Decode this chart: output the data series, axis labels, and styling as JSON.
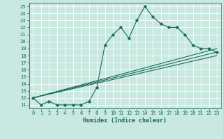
{
  "xlabel": "Humidex (Indice chaleur)",
  "ylabel": "",
  "xlim": [
    -0.5,
    23.5
  ],
  "ylim": [
    10.5,
    25.5
  ],
  "xticks": [
    0,
    1,
    2,
    3,
    4,
    5,
    6,
    7,
    8,
    9,
    10,
    11,
    12,
    13,
    14,
    15,
    16,
    17,
    18,
    19,
    20,
    21,
    22,
    23
  ],
  "yticks": [
    11,
    12,
    13,
    14,
    15,
    16,
    17,
    18,
    19,
    20,
    21,
    22,
    23,
    24,
    25
  ],
  "bg_color": "#c8e8e0",
  "line_color": "#1a6b5a",
  "grid_color": "#ffffff",
  "lines": [
    {
      "x": [
        0,
        1,
        2,
        3,
        4,
        5,
        6,
        7,
        8,
        9,
        10,
        11,
        12,
        13,
        14,
        15,
        16,
        17,
        18,
        19,
        20,
        21,
        22,
        23
      ],
      "y": [
        12,
        11,
        11.5,
        11,
        11,
        11,
        11,
        11.5,
        13.5,
        19.5,
        21,
        22,
        20.5,
        23,
        25,
        23.5,
        22.5,
        22,
        22,
        21,
        19.5,
        19,
        19,
        18.5
      ]
    },
    {
      "x": [
        0,
        23
      ],
      "y": [
        12,
        19
      ]
    },
    {
      "x": [
        0,
        23
      ],
      "y": [
        12,
        18
      ]
    },
    {
      "x": [
        0,
        23
      ],
      "y": [
        12,
        18.5
      ]
    }
  ],
  "marker": "D",
  "markersize": 1.8,
  "linewidth": 0.8,
  "tick_fontsize": 5.0,
  "xlabel_fontsize": 6.0
}
